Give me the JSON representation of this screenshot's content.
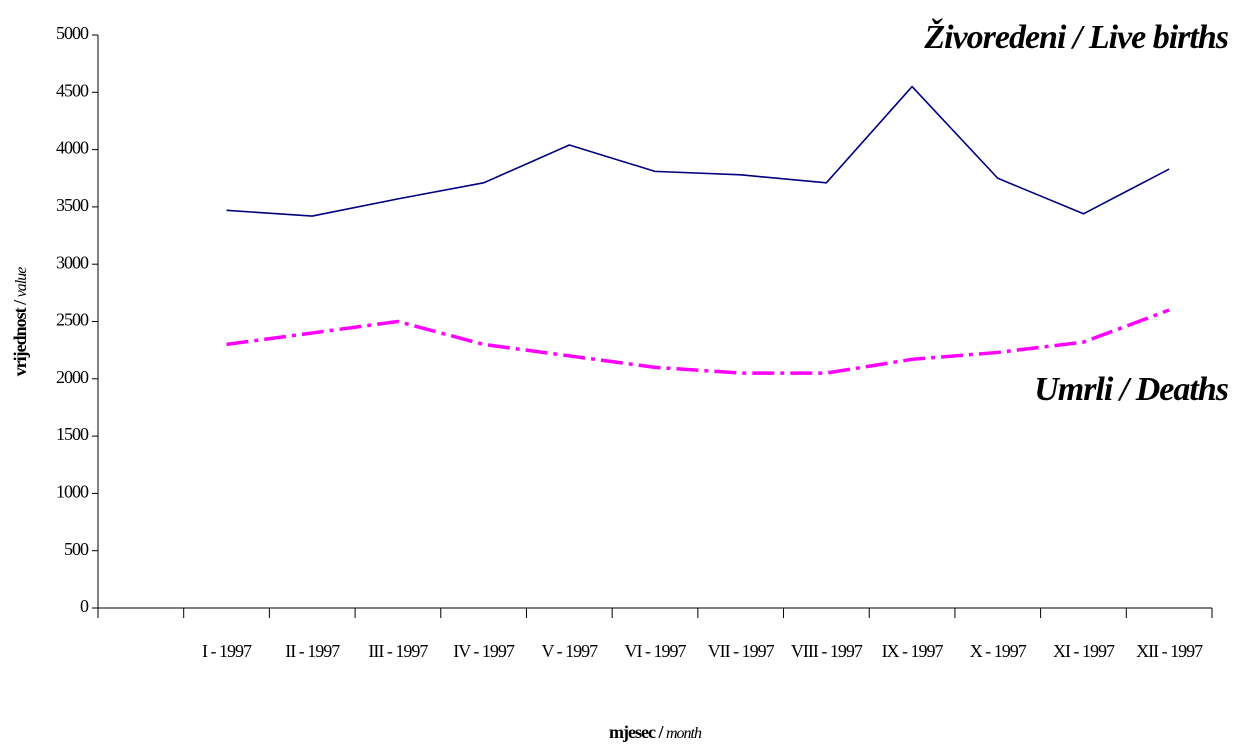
{
  "chart_data": {
    "type": "line",
    "y_label": "vrijednost /",
    "y_label_italic": "value",
    "x_label": "mjesec /",
    "x_label_italic": "month",
    "categories": [
      null,
      "I - 1997",
      "II - 1997",
      "III - 1997",
      "IV - 1997",
      "V - 1997",
      "VI - 1997",
      "VII - 1997",
      "VIII - 1997",
      "IX - 1997",
      "X - 1997",
      "XI - 1997",
      "XII - 1997"
    ],
    "series": [
      {
        "name": "Živoredeni / Live births",
        "color": "#000080",
        "dash": "solid",
        "values": [
          null,
          3470,
          3420,
          3570,
          3710,
          4040,
          3810,
          3780,
          3710,
          4550,
          3750,
          3440,
          3830
        ]
      },
      {
        "name": "Umrli / Deaths",
        "color": "#ff00ff",
        "dash": "dash-dot",
        "values": [
          null,
          2300,
          2400,
          2500,
          2300,
          2200,
          2100,
          2050,
          2050,
          2170,
          2230,
          2320,
          2600
        ]
      }
    ],
    "ylim": [
      0,
      5000
    ],
    "yticks": [
      0,
      500,
      1000,
      1500,
      2000,
      2500,
      3000,
      3500,
      4000,
      4500,
      5000
    ],
    "grid": false
  }
}
